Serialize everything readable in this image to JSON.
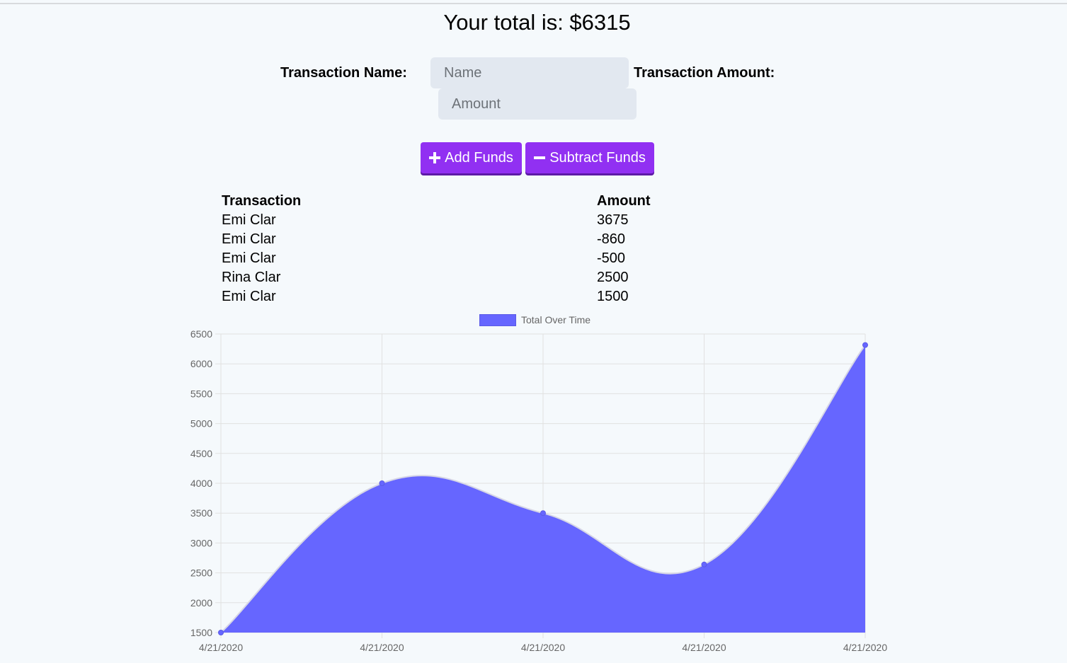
{
  "header": {
    "total_text": "Your total is: $6315"
  },
  "form": {
    "name_label": "Transaction Name:",
    "name_placeholder": "Name",
    "amount_label": "Transaction Amount:",
    "amount_placeholder": "Amount"
  },
  "buttons": {
    "add_label": "Add Funds",
    "add_icon": "plus-icon",
    "subtract_label": "Subtract Funds",
    "subtract_icon": "minus-icon",
    "color": "#9130f2"
  },
  "table": {
    "headers": [
      "Transaction",
      "Amount"
    ],
    "rows": [
      {
        "name": "Emi Clar",
        "amount": "3675"
      },
      {
        "name": "Emi Clar",
        "amount": "-860"
      },
      {
        "name": "Emi Clar",
        "amount": "-500"
      },
      {
        "name": "Rina Clar",
        "amount": "2500"
      },
      {
        "name": "Emi Clar",
        "amount": "1500"
      }
    ]
  },
  "chart_data": {
    "type": "area",
    "categories": [
      "4/21/2020",
      "4/21/2020",
      "4/21/2020",
      "4/21/2020",
      "4/21/2020"
    ],
    "series": [
      {
        "name": "Total Over Time",
        "values": [
          1500,
          4000,
          3500,
          2640,
          6315
        ],
        "color": "#6666ff"
      }
    ],
    "y_ticks": [
      "6500",
      "6000",
      "5500",
      "5000",
      "4500",
      "4000",
      "3500",
      "3000",
      "2500",
      "2000",
      "1500"
    ],
    "ylim": [
      1500,
      6500
    ],
    "grid": true,
    "legend": "top-center"
  }
}
